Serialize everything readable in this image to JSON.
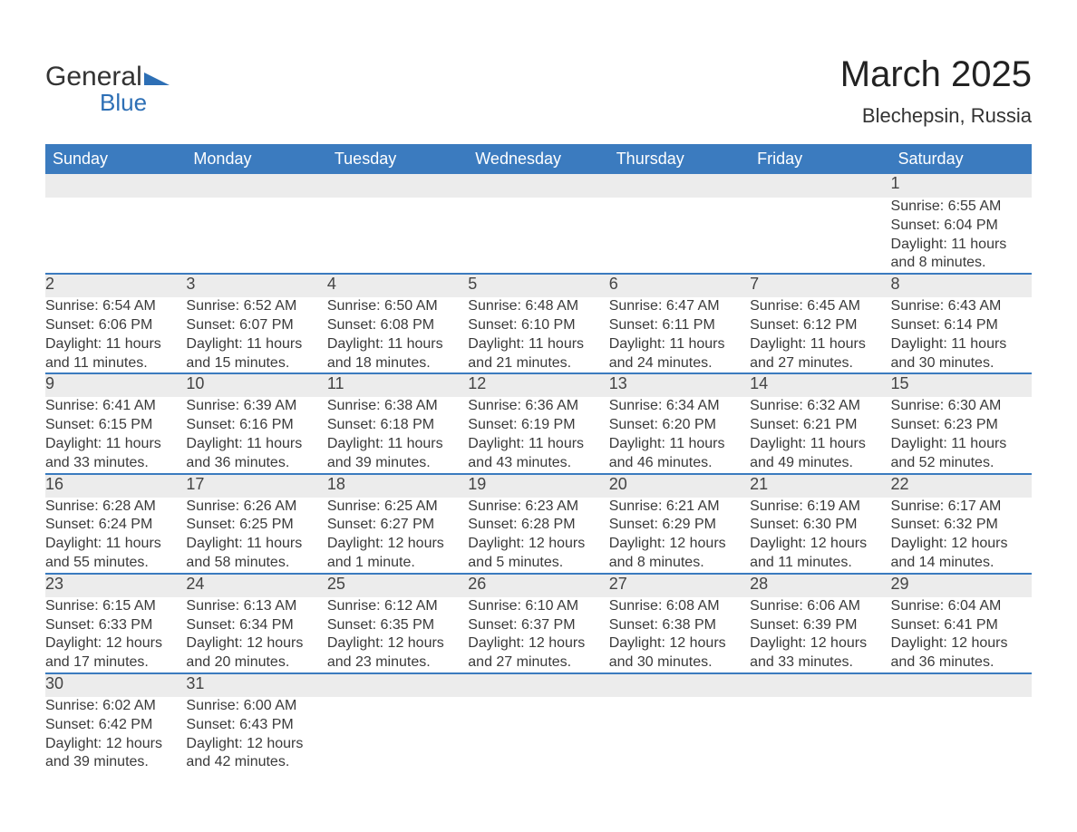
{
  "brand": {
    "left": "General",
    "right": "Blue"
  },
  "title": "March 2025",
  "subtitle": "Blechepsin, Russia",
  "colors": {
    "header_bg": "#3b7bbf",
    "header_text": "#ffffff",
    "daynum_bg": "#ececec",
    "row_border": "#3b7bbf",
    "text": "#3a3a3a",
    "page_bg": "#ffffff",
    "logo_blue": "#2d6fb5"
  },
  "layout": {
    "columns": 7,
    "weeks": 6
  },
  "days_of_week": [
    "Sunday",
    "Monday",
    "Tuesday",
    "Wednesday",
    "Thursday",
    "Friday",
    "Saturday"
  ],
  "weeks": [
    [
      null,
      null,
      null,
      null,
      null,
      null,
      {
        "n": "1",
        "sunrise": "Sunrise: 6:55 AM",
        "sunset": "Sunset: 6:04 PM",
        "day1": "Daylight: 11 hours",
        "day2": "and 8 minutes."
      }
    ],
    [
      {
        "n": "2",
        "sunrise": "Sunrise: 6:54 AM",
        "sunset": "Sunset: 6:06 PM",
        "day1": "Daylight: 11 hours",
        "day2": "and 11 minutes."
      },
      {
        "n": "3",
        "sunrise": "Sunrise: 6:52 AM",
        "sunset": "Sunset: 6:07 PM",
        "day1": "Daylight: 11 hours",
        "day2": "and 15 minutes."
      },
      {
        "n": "4",
        "sunrise": "Sunrise: 6:50 AM",
        "sunset": "Sunset: 6:08 PM",
        "day1": "Daylight: 11 hours",
        "day2": "and 18 minutes."
      },
      {
        "n": "5",
        "sunrise": "Sunrise: 6:48 AM",
        "sunset": "Sunset: 6:10 PM",
        "day1": "Daylight: 11 hours",
        "day2": "and 21 minutes."
      },
      {
        "n": "6",
        "sunrise": "Sunrise: 6:47 AM",
        "sunset": "Sunset: 6:11 PM",
        "day1": "Daylight: 11 hours",
        "day2": "and 24 minutes."
      },
      {
        "n": "7",
        "sunrise": "Sunrise: 6:45 AM",
        "sunset": "Sunset: 6:12 PM",
        "day1": "Daylight: 11 hours",
        "day2": "and 27 minutes."
      },
      {
        "n": "8",
        "sunrise": "Sunrise: 6:43 AM",
        "sunset": "Sunset: 6:14 PM",
        "day1": "Daylight: 11 hours",
        "day2": "and 30 minutes."
      }
    ],
    [
      {
        "n": "9",
        "sunrise": "Sunrise: 6:41 AM",
        "sunset": "Sunset: 6:15 PM",
        "day1": "Daylight: 11 hours",
        "day2": "and 33 minutes."
      },
      {
        "n": "10",
        "sunrise": "Sunrise: 6:39 AM",
        "sunset": "Sunset: 6:16 PM",
        "day1": "Daylight: 11 hours",
        "day2": "and 36 minutes."
      },
      {
        "n": "11",
        "sunrise": "Sunrise: 6:38 AM",
        "sunset": "Sunset: 6:18 PM",
        "day1": "Daylight: 11 hours",
        "day2": "and 39 minutes."
      },
      {
        "n": "12",
        "sunrise": "Sunrise: 6:36 AM",
        "sunset": "Sunset: 6:19 PM",
        "day1": "Daylight: 11 hours",
        "day2": "and 43 minutes."
      },
      {
        "n": "13",
        "sunrise": "Sunrise: 6:34 AM",
        "sunset": "Sunset: 6:20 PM",
        "day1": "Daylight: 11 hours",
        "day2": "and 46 minutes."
      },
      {
        "n": "14",
        "sunrise": "Sunrise: 6:32 AM",
        "sunset": "Sunset: 6:21 PM",
        "day1": "Daylight: 11 hours",
        "day2": "and 49 minutes."
      },
      {
        "n": "15",
        "sunrise": "Sunrise: 6:30 AM",
        "sunset": "Sunset: 6:23 PM",
        "day1": "Daylight: 11 hours",
        "day2": "and 52 minutes."
      }
    ],
    [
      {
        "n": "16",
        "sunrise": "Sunrise: 6:28 AM",
        "sunset": "Sunset: 6:24 PM",
        "day1": "Daylight: 11 hours",
        "day2": "and 55 minutes."
      },
      {
        "n": "17",
        "sunrise": "Sunrise: 6:26 AM",
        "sunset": "Sunset: 6:25 PM",
        "day1": "Daylight: 11 hours",
        "day2": "and 58 minutes."
      },
      {
        "n": "18",
        "sunrise": "Sunrise: 6:25 AM",
        "sunset": "Sunset: 6:27 PM",
        "day1": "Daylight: 12 hours",
        "day2": "and 1 minute."
      },
      {
        "n": "19",
        "sunrise": "Sunrise: 6:23 AM",
        "sunset": "Sunset: 6:28 PM",
        "day1": "Daylight: 12 hours",
        "day2": "and 5 minutes."
      },
      {
        "n": "20",
        "sunrise": "Sunrise: 6:21 AM",
        "sunset": "Sunset: 6:29 PM",
        "day1": "Daylight: 12 hours",
        "day2": "and 8 minutes."
      },
      {
        "n": "21",
        "sunrise": "Sunrise: 6:19 AM",
        "sunset": "Sunset: 6:30 PM",
        "day1": "Daylight: 12 hours",
        "day2": "and 11 minutes."
      },
      {
        "n": "22",
        "sunrise": "Sunrise: 6:17 AM",
        "sunset": "Sunset: 6:32 PM",
        "day1": "Daylight: 12 hours",
        "day2": "and 14 minutes."
      }
    ],
    [
      {
        "n": "23",
        "sunrise": "Sunrise: 6:15 AM",
        "sunset": "Sunset: 6:33 PM",
        "day1": "Daylight: 12 hours",
        "day2": "and 17 minutes."
      },
      {
        "n": "24",
        "sunrise": "Sunrise: 6:13 AM",
        "sunset": "Sunset: 6:34 PM",
        "day1": "Daylight: 12 hours",
        "day2": "and 20 minutes."
      },
      {
        "n": "25",
        "sunrise": "Sunrise: 6:12 AM",
        "sunset": "Sunset: 6:35 PM",
        "day1": "Daylight: 12 hours",
        "day2": "and 23 minutes."
      },
      {
        "n": "26",
        "sunrise": "Sunrise: 6:10 AM",
        "sunset": "Sunset: 6:37 PM",
        "day1": "Daylight: 12 hours",
        "day2": "and 27 minutes."
      },
      {
        "n": "27",
        "sunrise": "Sunrise: 6:08 AM",
        "sunset": "Sunset: 6:38 PM",
        "day1": "Daylight: 12 hours",
        "day2": "and 30 minutes."
      },
      {
        "n": "28",
        "sunrise": "Sunrise: 6:06 AM",
        "sunset": "Sunset: 6:39 PM",
        "day1": "Daylight: 12 hours",
        "day2": "and 33 minutes."
      },
      {
        "n": "29",
        "sunrise": "Sunrise: 6:04 AM",
        "sunset": "Sunset: 6:41 PM",
        "day1": "Daylight: 12 hours",
        "day2": "and 36 minutes."
      }
    ],
    [
      {
        "n": "30",
        "sunrise": "Sunrise: 6:02 AM",
        "sunset": "Sunset: 6:42 PM",
        "day1": "Daylight: 12 hours",
        "day2": "and 39 minutes."
      },
      {
        "n": "31",
        "sunrise": "Sunrise: 6:00 AM",
        "sunset": "Sunset: 6:43 PM",
        "day1": "Daylight: 12 hours",
        "day2": "and 42 minutes."
      },
      null,
      null,
      null,
      null,
      null
    ]
  ]
}
